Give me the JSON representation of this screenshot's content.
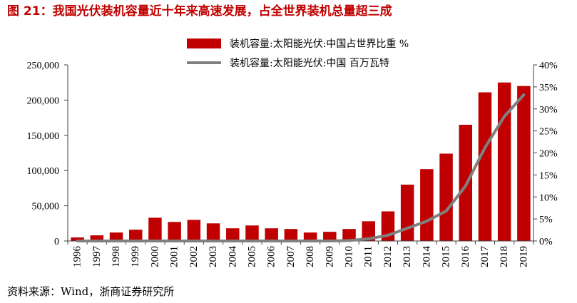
{
  "source": "资料来源：Wind，浙商证券研究所",
  "colors": {
    "title": "#c00000",
    "bar": "#c00000",
    "line": "#808080",
    "axis": "#404040"
  },
  "chart_data": {
    "type": "bar",
    "title": "图 21：我国光伏装机容量近十年来高速发展，占全世界装机总量超三成",
    "legend": "top-center",
    "grid": false,
    "categories": [
      "1996",
      "1997",
      "1998",
      "1999",
      "2000",
      "2001",
      "2002",
      "2003",
      "2004",
      "2005",
      "2006",
      "2007",
      "2008",
      "2009",
      "2010",
      "2011",
      "2012",
      "2013",
      "2014",
      "2015",
      "2016",
      "2017",
      "2018",
      "2019"
    ],
    "series": [
      {
        "name": "装机容量:太阳能光伏:中国占世界比重 %",
        "type": "bar",
        "axis": "left",
        "values": [
          5000,
          8000,
          12000,
          16000,
          33000,
          27000,
          30000,
          25000,
          18000,
          22000,
          18000,
          17000,
          12000,
          13000,
          17000,
          28000,
          42000,
          80000,
          102000,
          124000,
          165000,
          211000,
          225000,
          220000
        ]
      },
      {
        "name": "装机容量:太阳能光伏:中国 百万瓦特",
        "type": "line",
        "axis": "right",
        "values": [
          0,
          0,
          0,
          0,
          0,
          0,
          0,
          0,
          0,
          0,
          0,
          0,
          0,
          0,
          0.1,
          0.5,
          1.3,
          2.9,
          4.5,
          6.8,
          12.5,
          21.2,
          28.3,
          33.2
        ]
      }
    ],
    "y_left": {
      "range": [
        0,
        250000
      ],
      "ticks": [
        0,
        50000,
        100000,
        150000,
        200000,
        250000
      ],
      "tick_labels": [
        "0",
        "50,000",
        "100,000",
        "150,000",
        "200,000",
        "250,000"
      ]
    },
    "y_right": {
      "range": [
        0,
        40
      ],
      "ticks": [
        0,
        5,
        10,
        15,
        20,
        25,
        30,
        35,
        40
      ],
      "tick_labels": [
        "0%",
        "5%",
        "10%",
        "15%",
        "20%",
        "25%",
        "30%",
        "35%",
        "40%"
      ]
    }
  }
}
